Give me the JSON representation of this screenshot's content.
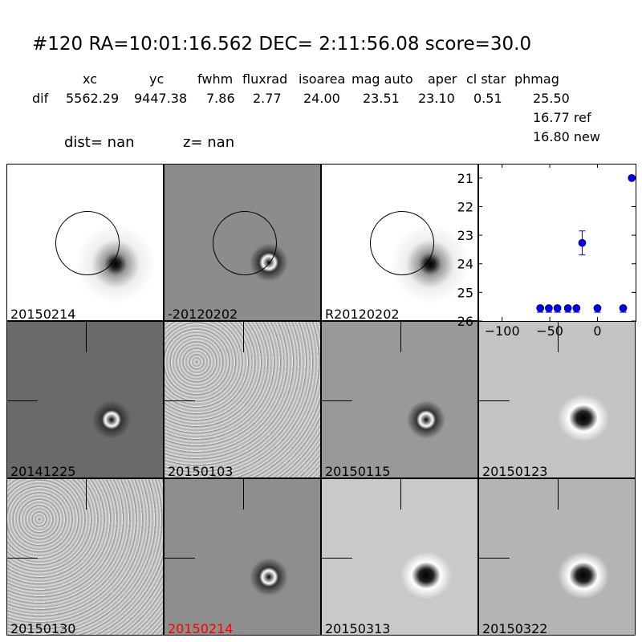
{
  "title": "#120   RA=10:01:16.562 DEC= 2:11:56.08      score=30.0",
  "table": {
    "headers": [
      "xc",
      "yc",
      "fwhm",
      "fluxrad",
      "isoarea",
      "mag auto",
      "aper",
      "cl star",
      "phmag"
    ],
    "row_label": "dif",
    "values": [
      "5562.29",
      "9447.38",
      "7.86",
      "2.77",
      "24.00",
      "23.51",
      "23.10",
      "0.51",
      "25.50"
    ],
    "ref": "16.77 ref",
    "new": "16.80 new"
  },
  "dist": "dist=   nan",
  "z": "z=   nan",
  "panels": [
    {
      "label": "20150214",
      "bg": "#ffffff",
      "style": "ref"
    },
    {
      "label": "-20120202",
      "bg": "#8c8c8c",
      "style": "diff"
    },
    {
      "label": "R20120202",
      "bg": "#ffffff",
      "style": "ref"
    },
    {
      "label": "20141225",
      "bg": "#6a6a6a",
      "style": "diff"
    },
    {
      "label": "20150103",
      "bg": "#bdbdbd",
      "style": "noisy"
    },
    {
      "label": "20150115",
      "bg": "#999999",
      "style": "diff"
    },
    {
      "label": "20150123",
      "bg": "#c4c4c4",
      "style": "dark"
    },
    {
      "label": "20150130",
      "bg": "#a9a9a9",
      "style": "noisy"
    },
    {
      "label": "20150214",
      "bg": "#8e8e8e",
      "style": "diff",
      "highlight": "#ff0000"
    },
    {
      "label": "20150313",
      "bg": "#c9c9c9",
      "style": "dark"
    },
    {
      "label": "20150322",
      "bg": "#b4b4b4",
      "style": "dark"
    }
  ],
  "chart_data": {
    "type": "scatter",
    "xlim": [
      -125,
      40
    ],
    "ylim": [
      26,
      20.5
    ],
    "y_inverted": true,
    "xticks": [
      -100,
      -50,
      0
    ],
    "yticks": [
      21,
      22,
      23,
      24,
      25,
      26
    ],
    "color": "#0000ff",
    "points": [
      {
        "x": -60,
        "y": 25.55,
        "upper_limit": true
      },
      {
        "x": -51,
        "y": 25.55,
        "upper_limit": true
      },
      {
        "x": -42,
        "y": 25.55,
        "upper_limit": true
      },
      {
        "x": -31,
        "y": 25.55,
        "upper_limit": true
      },
      {
        "x": -22,
        "y": 25.55,
        "upper_limit": true
      },
      {
        "x": -16,
        "y": 23.27,
        "err": 0.42
      },
      {
        "x": 0,
        "y": 25.55,
        "upper_limit": true
      },
      {
        "x": 27,
        "y": 25.55,
        "upper_limit": true
      },
      {
        "x": 36,
        "y": 21.0
      }
    ]
  }
}
